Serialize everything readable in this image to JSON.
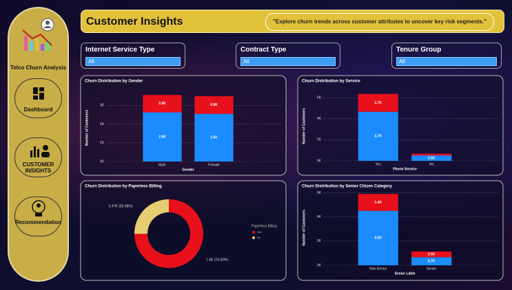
{
  "sidebar": {
    "title": "Telco Churn Analysis",
    "buttons": [
      "Dashboard",
      "CUSTOMER INSIGHTS",
      "Recommendation"
    ]
  },
  "header": {
    "title": "Customer Insights",
    "quote": "\"Explore churn trends across customer attributes to uncover key risk segments.\""
  },
  "filters": [
    {
      "label": "Internet Service Type",
      "value": "All"
    },
    {
      "label": "Contract Type",
      "value": "All"
    },
    {
      "label": "Tenure Group",
      "value": "All"
    }
  ],
  "chart_data": [
    {
      "type": "bar",
      "stacked": true,
      "title": "Churn Distribution by Gender",
      "x_label": "Gender",
      "y_label": "Number of Customers",
      "categories": [
        "Male",
        "Female"
      ],
      "series": [
        {
          "color": "#1a8cff",
          "values": [
            2625,
            2549
          ],
          "value_labels": [
            "2.6K",
            "2.5K"
          ]
        },
        {
          "color": "#e8101b",
          "values": [
            930,
            939
          ],
          "value_labels": [
            "0.9K",
            "0.9K"
          ]
        }
      ],
      "ylim": [
        0,
        3600
      ],
      "yticks": [
        {
          "value": 0,
          "label": "0K"
        },
        {
          "value": 1000,
          "label": "1K"
        },
        {
          "value": 2000,
          "label": "2K"
        },
        {
          "value": 3000,
          "label": "3K"
        }
      ],
      "grid": true
    },
    {
      "type": "bar",
      "stacked": true,
      "title": "Churn Distribution by Service",
      "x_label": "Phone Service",
      "y_label": "Number of Customers",
      "categories": [
        "Yes",
        "No"
      ],
      "series": [
        {
          "color": "#1a8cff",
          "values": [
            4662,
            512
          ],
          "value_labels": [
            "4.7K",
            "0.5K"
          ]
        },
        {
          "color": "#e8101b",
          "values": [
            1699,
            170
          ],
          "value_labels": [
            "1.7K",
            null
          ]
        }
      ],
      "ylim": [
        0,
        6600
      ],
      "yticks": [
        {
          "value": 0,
          "label": "0K"
        },
        {
          "value": 2000,
          "label": "2K"
        },
        {
          "value": 4000,
          "label": "4K"
        },
        {
          "value": 6000,
          "label": "6K"
        }
      ],
      "grid": true
    },
    {
      "type": "pie",
      "donut": true,
      "title": "Churn Distribution by Paperless Billing",
      "legend_title": "Paperless Billing",
      "categories": [
        "Yes",
        "No"
      ],
      "values": [
        1400,
        470
      ],
      "value_labels": [
        "1.4K (74.92%)",
        "0.47K (25.08%)"
      ],
      "colors": [
        "#e8101b",
        "#e6cd72"
      ]
    },
    {
      "type": "bar",
      "stacked": true,
      "title": "Churn Distribution by Senior Citizen Category",
      "x_label": "Senior Lable",
      "y_label": "Number of Customers",
      "categories": [
        "Non-Senior",
        "Senior"
      ],
      "series": [
        {
          "color": "#1a8cff",
          "values": [
            4508,
            666
          ],
          "value_labels": [
            "4.5K",
            "0.7K"
          ]
        },
        {
          "color": "#e8101b",
          "values": [
            1393,
            476
          ],
          "value_labels": [
            "1.4K",
            "0.5K"
          ]
        }
      ],
      "ylim": [
        0,
        6200
      ],
      "yticks": [
        {
          "value": 0,
          "label": "0K"
        },
        {
          "value": 2000,
          "label": "2K"
        },
        {
          "value": 4000,
          "label": "4K"
        },
        {
          "value": 6000,
          "label": "6K"
        }
      ],
      "grid": true
    }
  ]
}
